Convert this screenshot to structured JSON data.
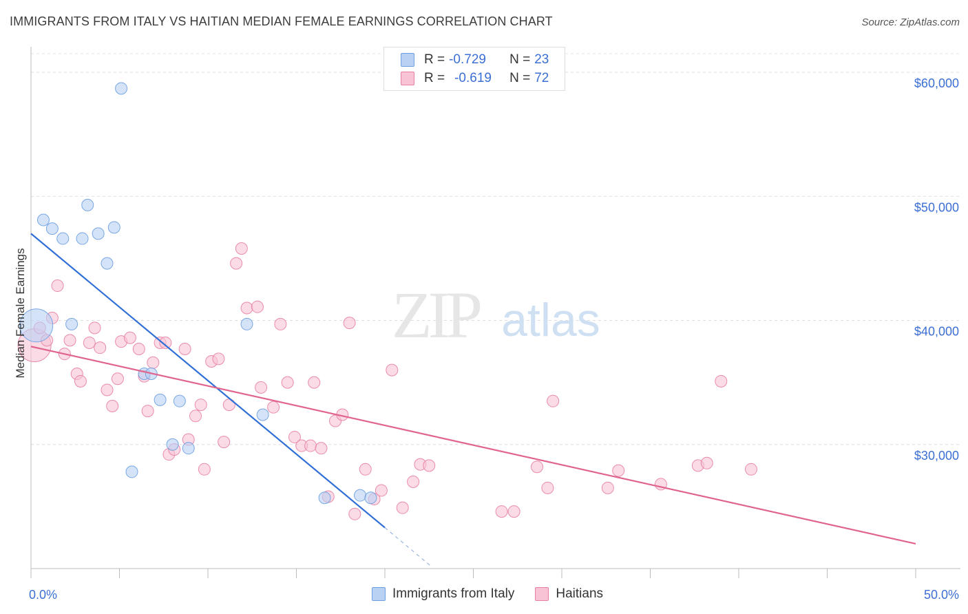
{
  "title": "IMMIGRANTS FROM ITALY VS HAITIAN MEDIAN FEMALE EARNINGS CORRELATION CHART",
  "source": "Source: ZipAtlas.com",
  "watermark": {
    "zip": "ZIP",
    "atlas": "atlas"
  },
  "colors": {
    "blue": "#6b9fe0",
    "blue_fill": "#b9d1f3",
    "pink": "#e87fa3",
    "pink_fill": "#f8c4d5",
    "blue_line": "#2f6fd6",
    "pink_line": "#e0648e",
    "value_text": "#3b6fd4"
  },
  "legend": {
    "rows": [
      {
        "r_label": "R =",
        "r_value": "-0.729",
        "n_label": "N =",
        "n_value": "23"
      },
      {
        "r_label": "R =",
        "r_value": "-0.619",
        "n_label": "N =",
        "n_value": "72"
      }
    ]
  },
  "bottom_legend": [
    "Immigrants from Italy",
    "Haitians"
  ],
  "chart_data": {
    "type": "scatter",
    "xlabel": "",
    "ylabel": "Median Female Earnings",
    "xlim": [
      0,
      50
    ],
    "ylim": [
      20000,
      61500
    ],
    "x_tick_labels": [
      "0.0%",
      "50.0%"
    ],
    "y_ticks": [
      30000,
      40000,
      50000,
      60000
    ],
    "y_tick_labels": [
      "$30,000",
      "$40,000",
      "$50,000",
      "$60,000"
    ],
    "grid": true,
    "series": [
      {
        "name": "Immigrants from Italy",
        "color": "blue",
        "points": [
          [
            0.3,
            39600,
            "large"
          ],
          [
            0.7,
            48100
          ],
          [
            1.2,
            47400
          ],
          [
            1.8,
            46600
          ],
          [
            2.3,
            39700
          ],
          [
            2.9,
            46600
          ],
          [
            3.2,
            49300
          ],
          [
            3.8,
            47000
          ],
          [
            4.3,
            44600
          ],
          [
            4.7,
            47500
          ],
          [
            5.1,
            58700
          ],
          [
            5.7,
            27800
          ],
          [
            6.4,
            35700
          ],
          [
            6.8,
            35700
          ],
          [
            7.3,
            33600
          ],
          [
            8.0,
            30000
          ],
          [
            8.4,
            33500
          ],
          [
            8.9,
            29700
          ],
          [
            12.2,
            39700
          ],
          [
            13.1,
            32400
          ],
          [
            16.6,
            25700
          ],
          [
            18.6,
            25900
          ],
          [
            19.2,
            25700
          ]
        ]
      },
      {
        "name": "Haitians",
        "color": "pink",
        "points": [
          [
            0.2,
            38000,
            "large"
          ],
          [
            0.5,
            39400
          ],
          [
            0.9,
            38400
          ],
          [
            1.2,
            40200
          ],
          [
            1.5,
            42800
          ],
          [
            1.9,
            37300
          ],
          [
            2.2,
            38400
          ],
          [
            2.6,
            35700
          ],
          [
            2.8,
            35100
          ],
          [
            3.3,
            38200
          ],
          [
            3.6,
            39400
          ],
          [
            3.9,
            37800
          ],
          [
            4.3,
            34400
          ],
          [
            4.6,
            33100
          ],
          [
            4.9,
            35300
          ],
          [
            5.1,
            38300
          ],
          [
            5.6,
            38600
          ],
          [
            6.1,
            37700
          ],
          [
            6.4,
            35500
          ],
          [
            6.6,
            32700
          ],
          [
            6.9,
            36600
          ],
          [
            7.3,
            38200
          ],
          [
            7.6,
            38200
          ],
          [
            7.8,
            29200
          ],
          [
            8.1,
            29600
          ],
          [
            8.7,
            37700
          ],
          [
            8.9,
            30400
          ],
          [
            9.3,
            32300
          ],
          [
            9.6,
            33200
          ],
          [
            9.8,
            28000
          ],
          [
            10.2,
            36700
          ],
          [
            10.6,
            36900
          ],
          [
            10.9,
            30200
          ],
          [
            11.2,
            33200
          ],
          [
            11.6,
            44600
          ],
          [
            11.9,
            45800
          ],
          [
            12.2,
            41000
          ],
          [
            12.8,
            41100
          ],
          [
            13.0,
            34600
          ],
          [
            13.7,
            33000
          ],
          [
            14.1,
            39700
          ],
          [
            14.5,
            35000
          ],
          [
            14.9,
            30600
          ],
          [
            15.3,
            29900
          ],
          [
            15.8,
            29900
          ],
          [
            16.0,
            35000
          ],
          [
            16.4,
            29700
          ],
          [
            16.8,
            25800
          ],
          [
            17.2,
            31900
          ],
          [
            17.6,
            32400
          ],
          [
            18.0,
            39800
          ],
          [
            18.3,
            24400
          ],
          [
            18.9,
            28000
          ],
          [
            19.4,
            25600
          ],
          [
            19.8,
            26300
          ],
          [
            20.4,
            36000
          ],
          [
            21.0,
            24900
          ],
          [
            21.6,
            27000
          ],
          [
            22.0,
            28400
          ],
          [
            22.5,
            28300
          ],
          [
            26.6,
            24600
          ],
          [
            27.3,
            24600
          ],
          [
            28.6,
            28200
          ],
          [
            29.2,
            26500
          ],
          [
            29.5,
            33500
          ],
          [
            32.6,
            26500
          ],
          [
            33.2,
            27900
          ],
          [
            35.6,
            26800
          ],
          [
            37.7,
            28300
          ],
          [
            38.2,
            28500
          ],
          [
            39.0,
            35100
          ],
          [
            40.7,
            28000
          ]
        ]
      }
    ],
    "trendlines": [
      {
        "series": "Immigrants from Italy",
        "x_start": 0,
        "y_start": 47000,
        "x_solid_end": 20,
        "y_solid_end": 23300,
        "x_end": 22.6,
        "y_end": 20200,
        "dashed_after_solid": true
      },
      {
        "series": "Haitians",
        "x_start": 0,
        "y_start": 37900,
        "x_end": 50,
        "y_end": 22000
      }
    ]
  }
}
